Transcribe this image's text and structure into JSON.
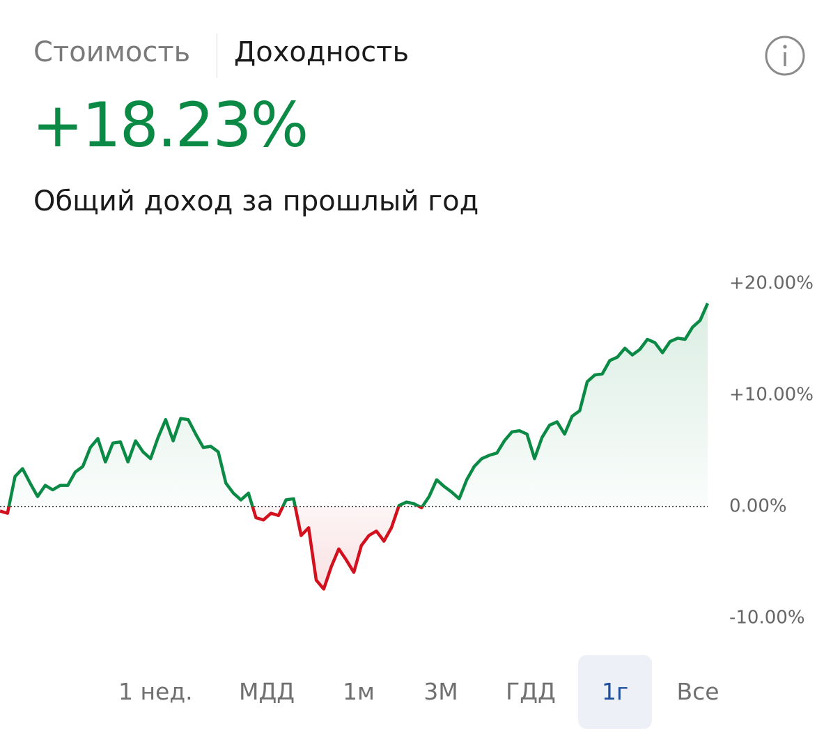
{
  "tabs": [
    {
      "label": "Стоимость",
      "active": false
    },
    {
      "label": "Доходность",
      "active": true
    }
  ],
  "headline": "+18.23%",
  "subtitle": "Общий доход за прошлый год",
  "chart_data": {
    "type": "line",
    "values": [
      -0.4,
      -0.6,
      2.7,
      3.4,
      2.1,
      0.9,
      1.9,
      1.5,
      1.9,
      1.9,
      3.1,
      3.6,
      5.3,
      6.1,
      4.0,
      5.7,
      5.8,
      4.0,
      5.9,
      4.9,
      4.3,
      6.2,
      7.8,
      5.9,
      7.9,
      7.8,
      6.5,
      5.3,
      5.4,
      4.9,
      2.1,
      1.2,
      0.6,
      1.2,
      -1.0,
      -1.2,
      -0.6,
      -0.8,
      0.6,
      0.7,
      -2.6,
      -1.9,
      -6.6,
      -7.4,
      -5.4,
      -3.8,
      -4.8,
      -5.9,
      -3.5,
      -2.6,
      -2.2,
      -3.1,
      -1.9,
      0.1,
      0.4,
      0.25,
      -0.1,
      0.9,
      2.4,
      1.8,
      1.3,
      0.7,
      2.4,
      3.6,
      4.3,
      4.6,
      4.8,
      5.9,
      6.7,
      6.8,
      6.5,
      4.3,
      6.2,
      7.3,
      7.6,
      6.5,
      8.1,
      8.6,
      11.2,
      11.8,
      11.9,
      13.1,
      13.4,
      14.2,
      13.6,
      14.1,
      15.0,
      14.7,
      13.8,
      14.8,
      15.1,
      15.0,
      16.1,
      16.7,
      18.23
    ],
    "color": "#0b8a45",
    "negative_color": "#d2101e",
    "ylim": [
      -10,
      20
    ],
    "yticks": [
      {
        "value": 20,
        "label": "+20.00%"
      },
      {
        "value": 10,
        "label": "+10.00%"
      },
      {
        "value": 0,
        "label": "0.00%"
      },
      {
        "value": -10,
        "label": "-10.00%"
      }
    ],
    "reference_line": 0
  },
  "periods": [
    {
      "label": "1 нед.",
      "active": false
    },
    {
      "label": "МДД",
      "active": false
    },
    {
      "label": "1м",
      "active": false
    },
    {
      "label": "3М",
      "active": false
    },
    {
      "label": "ГДД",
      "active": false
    },
    {
      "label": "1г",
      "active": true
    },
    {
      "label": "Все",
      "active": false
    }
  ]
}
